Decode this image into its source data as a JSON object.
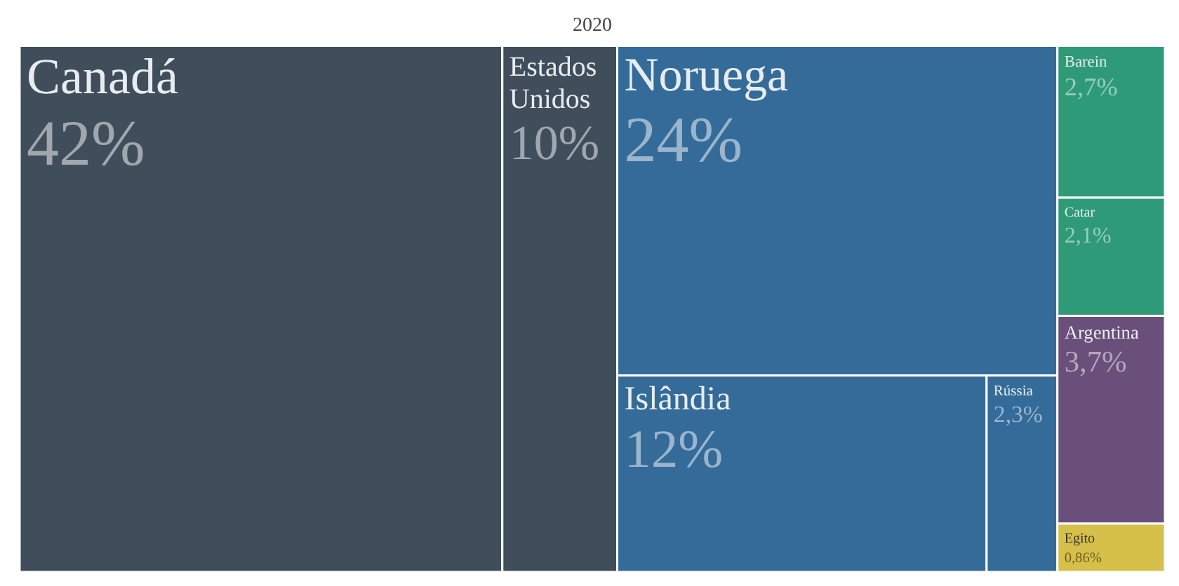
{
  "chart_data": {
    "type": "other",
    "title": "2020",
    "categories": [
      "Canadá",
      "Estados Unidos",
      "Noruega",
      "Islândia",
      "Rússia",
      "Barein",
      "Catar",
      "Argentina",
      "Egito"
    ],
    "values": [
      42,
      10,
      24,
      12,
      2.3,
      2.7,
      2.1,
      3.7,
      0.86
    ],
    "value_labels": [
      "42%",
      "10%",
      "24%",
      "12%",
      "2,3%",
      "2,7%",
      "2,1%",
      "3,7%",
      "0,86%"
    ],
    "colors": [
      "#404e5c",
      "#404e5c",
      "#346b99",
      "#346b99",
      "#346b99",
      "#2e9a78",
      "#2e9a78",
      "#6a4f7a",
      "#d6c04a"
    ]
  }
}
